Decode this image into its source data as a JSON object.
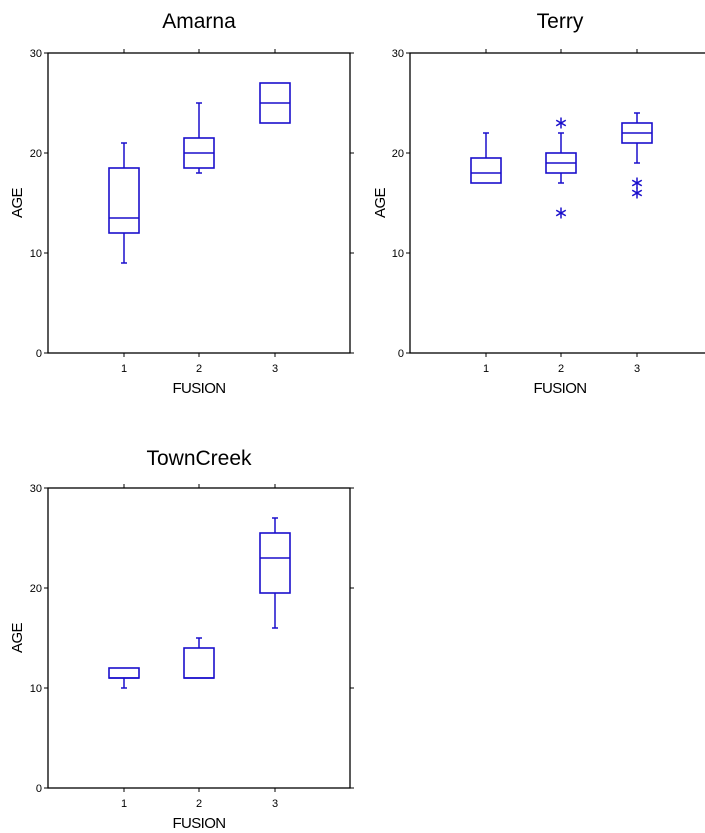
{
  "colors": {
    "box": "#1a0fcc",
    "axis": "#000000"
  },
  "chart_data": [
    {
      "type": "box",
      "title": "Amarna",
      "xlabel": "FUSION",
      "ylabel": "AGE",
      "categories": [
        "1",
        "2",
        "3"
      ],
      "ylim": [
        0,
        30
      ],
      "yticks": [
        "0",
        "10",
        "20",
        "30"
      ],
      "boxes": [
        {
          "whisker_low": 9,
          "q1": 12,
          "median": 13.5,
          "q3": 18.5,
          "whisker_high": 21,
          "outliers": []
        },
        {
          "whisker_low": 18,
          "q1": 18.5,
          "median": 20,
          "q3": 21.5,
          "whisker_high": 25,
          "outliers": []
        },
        {
          "whisker_low": 23,
          "q1": 23,
          "median": 25,
          "q3": 27,
          "whisker_high": 27,
          "outliers": []
        }
      ]
    },
    {
      "type": "box",
      "title": "Terry",
      "xlabel": "FUSION",
      "ylabel": "AGE",
      "categories": [
        "1",
        "2",
        "3"
      ],
      "ylim": [
        0,
        30
      ],
      "yticks": [
        "0",
        "10",
        "20",
        "30"
      ],
      "boxes": [
        {
          "whisker_low": 17,
          "q1": 17,
          "median": 18,
          "q3": 19.5,
          "whisker_high": 22,
          "outliers": []
        },
        {
          "whisker_low": 17,
          "q1": 18,
          "median": 19,
          "q3": 20,
          "whisker_high": 22,
          "outliers": [
            14,
            23
          ]
        },
        {
          "whisker_low": 19,
          "q1": 21,
          "median": 22,
          "q3": 23,
          "whisker_high": 24,
          "outliers": [
            16,
            17
          ]
        }
      ]
    },
    {
      "type": "box",
      "title": "TownCreek",
      "xlabel": "FUSION",
      "ylabel": "AGE",
      "categories": [
        "1",
        "2",
        "3"
      ],
      "ylim": [
        0,
        30
      ],
      "yticks": [
        "0",
        "10",
        "20",
        "30"
      ],
      "boxes": [
        {
          "whisker_low": 10,
          "q1": 11,
          "median": 11,
          "q3": 12,
          "whisker_high": 12,
          "outliers": []
        },
        {
          "whisker_low": 11,
          "q1": 11,
          "median": 11,
          "q3": 14,
          "whisker_high": 15,
          "outliers": []
        },
        {
          "whisker_low": 16,
          "q1": 19.5,
          "median": 23,
          "q3": 25.5,
          "whisker_high": 27,
          "outliers": []
        }
      ]
    }
  ]
}
